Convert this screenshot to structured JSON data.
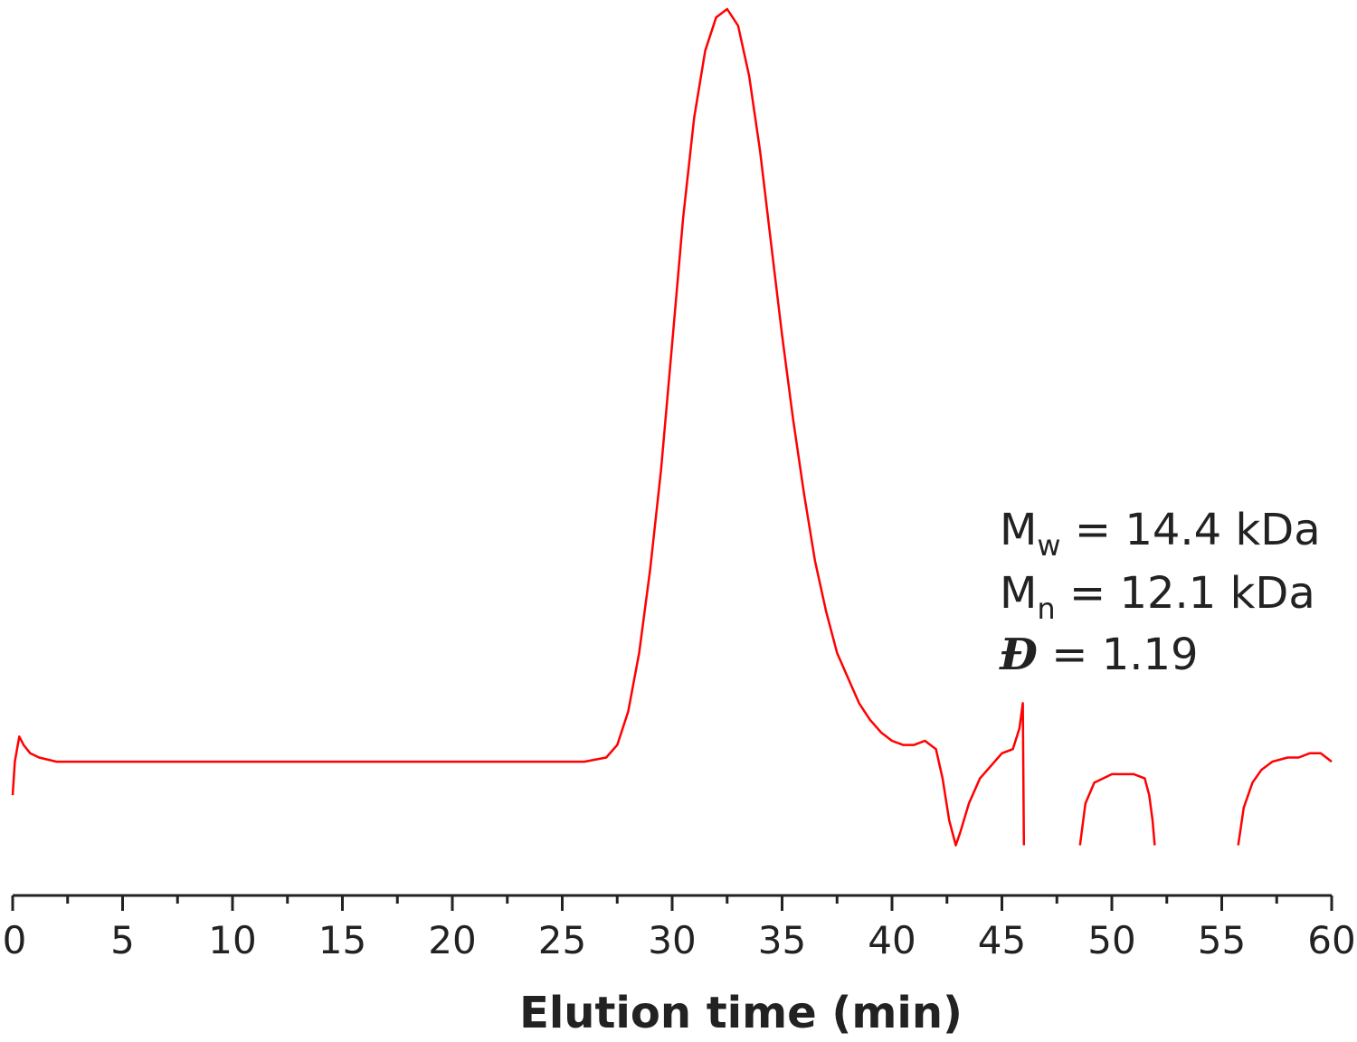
{
  "chart_data": {
    "type": "line",
    "title": "",
    "xlabel": "Elution time (min)",
    "ylabel": "",
    "xlim": [
      0,
      60
    ],
    "ylim": [
      -0.06,
      1.0
    ],
    "xticks": [
      0,
      5,
      10,
      15,
      20,
      25,
      30,
      35,
      40,
      45,
      50,
      55,
      60
    ],
    "xtick_labels": [
      "0",
      "5",
      "10",
      "15",
      "20",
      "25",
      "30",
      "35",
      "40",
      "45",
      "50",
      "55",
      "60"
    ],
    "minor_tick_step": 2.5,
    "y_axis_visible": false,
    "grid": false,
    "line_color": "#ff0000",
    "series": [
      {
        "segments": [
          {
            "x": [
              0.0,
              0.1,
              0.3,
              0.5,
              0.8,
              1.2,
              2,
              4,
              6,
              8,
              10,
              12,
              14,
              16,
              18,
              20,
              22,
              24,
              26,
              27,
              27.5,
              28,
              28.5,
              29,
              29.5,
              30,
              30.5,
              31,
              31.5,
              32,
              32.5,
              33,
              33.5,
              34,
              34.5,
              35,
              35.5,
              36,
              36.5,
              37,
              37.5,
              38,
              38.5,
              39,
              39.5,
              40,
              40.5,
              41,
              41.5,
              42,
              42.3,
              42.6,
              42.9,
              43.1,
              43.5,
              44,
              44.5,
              45,
              45.5,
              45.8,
              45.95,
              46.0
            ],
            "y": [
              0.06,
              0.1,
              0.13,
              0.12,
              0.11,
              0.105,
              0.1,
              0.1,
              0.1,
              0.1,
              0.1,
              0.1,
              0.1,
              0.1,
              0.1,
              0.1,
              0.1,
              0.1,
              0.1,
              0.105,
              0.12,
              0.16,
              0.23,
              0.33,
              0.45,
              0.6,
              0.75,
              0.87,
              0.95,
              0.99,
              1.0,
              0.98,
              0.92,
              0.83,
              0.72,
              0.61,
              0.51,
              0.42,
              0.34,
              0.28,
              0.23,
              0.2,
              0.17,
              0.15,
              0.135,
              0.125,
              0.12,
              0.12,
              0.125,
              0.115,
              0.08,
              0.03,
              0.0,
              0.015,
              0.05,
              0.08,
              0.095,
              0.11,
              0.115,
              0.14,
              0.17,
              0.0
            ]
          },
          {
            "x": [
              48.55,
              48.8,
              49.2,
              49.6,
              50,
              50.5,
              51,
              51.5,
              51.7,
              51.85,
              51.95
            ],
            "y": [
              0.0,
              0.05,
              0.075,
              0.08,
              0.085,
              0.085,
              0.085,
              0.08,
              0.06,
              0.03,
              0.0
            ]
          },
          {
            "x": [
              55.75,
              56.0,
              56.4,
              56.8,
              57.3,
              58,
              58.5,
              59,
              59.5,
              60.0
            ],
            "y": [
              0.0,
              0.045,
              0.075,
              0.09,
              0.1,
              0.105,
              0.105,
              0.11,
              0.11,
              0.1
            ]
          }
        ]
      }
    ],
    "annotations": [
      {
        "symbol": "M",
        "subscript": "w",
        "text": " = 14.4 kDa"
      },
      {
        "symbol": "M",
        "subscript": "n",
        "text": " = 12.1 kDa"
      },
      {
        "symbol": "Đ",
        "subscript": "",
        "text": " = 1.19"
      }
    ]
  }
}
